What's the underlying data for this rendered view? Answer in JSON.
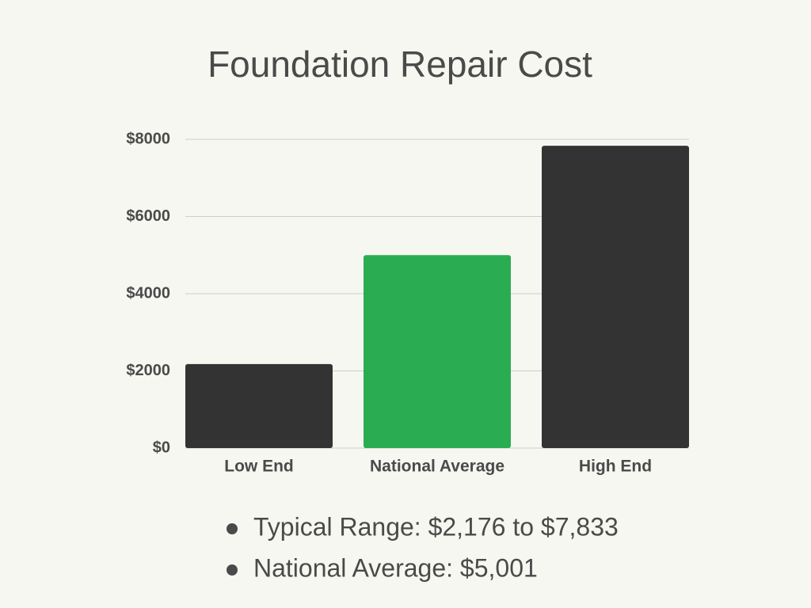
{
  "chart_data": {
    "type": "bar",
    "title": "Foundation Repair Cost",
    "categories": [
      "Low End",
      "National Average",
      "High End"
    ],
    "values": [
      2176,
      5001,
      7833
    ],
    "colors": [
      "#333333",
      "#2aad52",
      "#333333"
    ],
    "ylim": [
      0,
      8000
    ],
    "yticks": [
      {
        "value": 0,
        "label": "$0"
      },
      {
        "value": 2000,
        "label": "$2000"
      },
      {
        "value": 4000,
        "label": "$4000"
      },
      {
        "value": 6000,
        "label": "$6000"
      },
      {
        "value": 8000,
        "label": "$8000"
      }
    ],
    "grid": true,
    "notes": [
      "Typical Range: $2,176 to $7,833",
      "National Average: $5,001"
    ]
  }
}
